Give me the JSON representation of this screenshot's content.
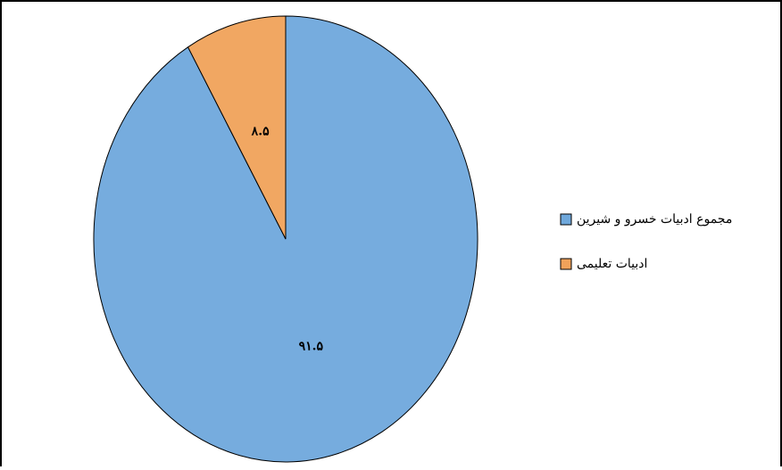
{
  "chart_data": {
    "type": "pie",
    "categories": [
      "مجموع ادبیات خسرو و شیرین",
      "ادبیات تعلیمی"
    ],
    "values": [
      91.5,
      8.5
    ],
    "value_labels": [
      "۹۱.۵",
      "۸.۵"
    ],
    "colors": [
      "#6fa8dc",
      "#f0a25a"
    ],
    "legend": "right"
  }
}
